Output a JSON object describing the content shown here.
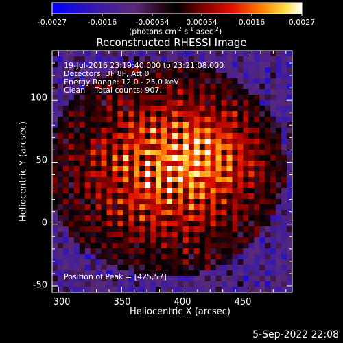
{
  "colorbar": {
    "tick_labels": [
      "-0.0027",
      "-0.0016",
      "-0.00054",
      "0.00054",
      "0.0016",
      "0.0027"
    ],
    "unit_label": "(photons cm",
    "unit_sup1": "-2",
    "unit_mid": " s",
    "unit_sup2": "-1",
    "unit_end": " asec",
    "unit_sup3": "-2",
    "unit_close": ")"
  },
  "chart_data": {
    "type": "heatmap",
    "title": "Reconstructed RHESSI Image",
    "xlabel": "Heliocentric X (arcsec)",
    "ylabel": "Heliocentric Y (arcsec)",
    "xlim": [
      295,
      485
    ],
    "ylim": [
      -55,
      140
    ],
    "x_ticks": [
      "300",
      "350",
      "400",
      "450"
    ],
    "y_ticks": [
      "100",
      "50",
      "0",
      "-50"
    ],
    "value_range": [
      -0.0027,
      0.0027
    ],
    "colormap": "blue-purple-black-red-yellow-white",
    "peak": [
      425,
      57
    ],
    "annotations": {
      "time": "19-Jul-2016 23:19:40.000 to 23:21:08.000",
      "detectors": "Detectors: 3F 8F, Att 0",
      "energy": "Energy Range: 12.0 - 25.0 keV",
      "clean": "Clean    Total counts: 907.",
      "peak_text": "Position of Peak = [425,57]"
    }
  },
  "footer": {
    "date": "5-Sep-2022 22:08"
  }
}
